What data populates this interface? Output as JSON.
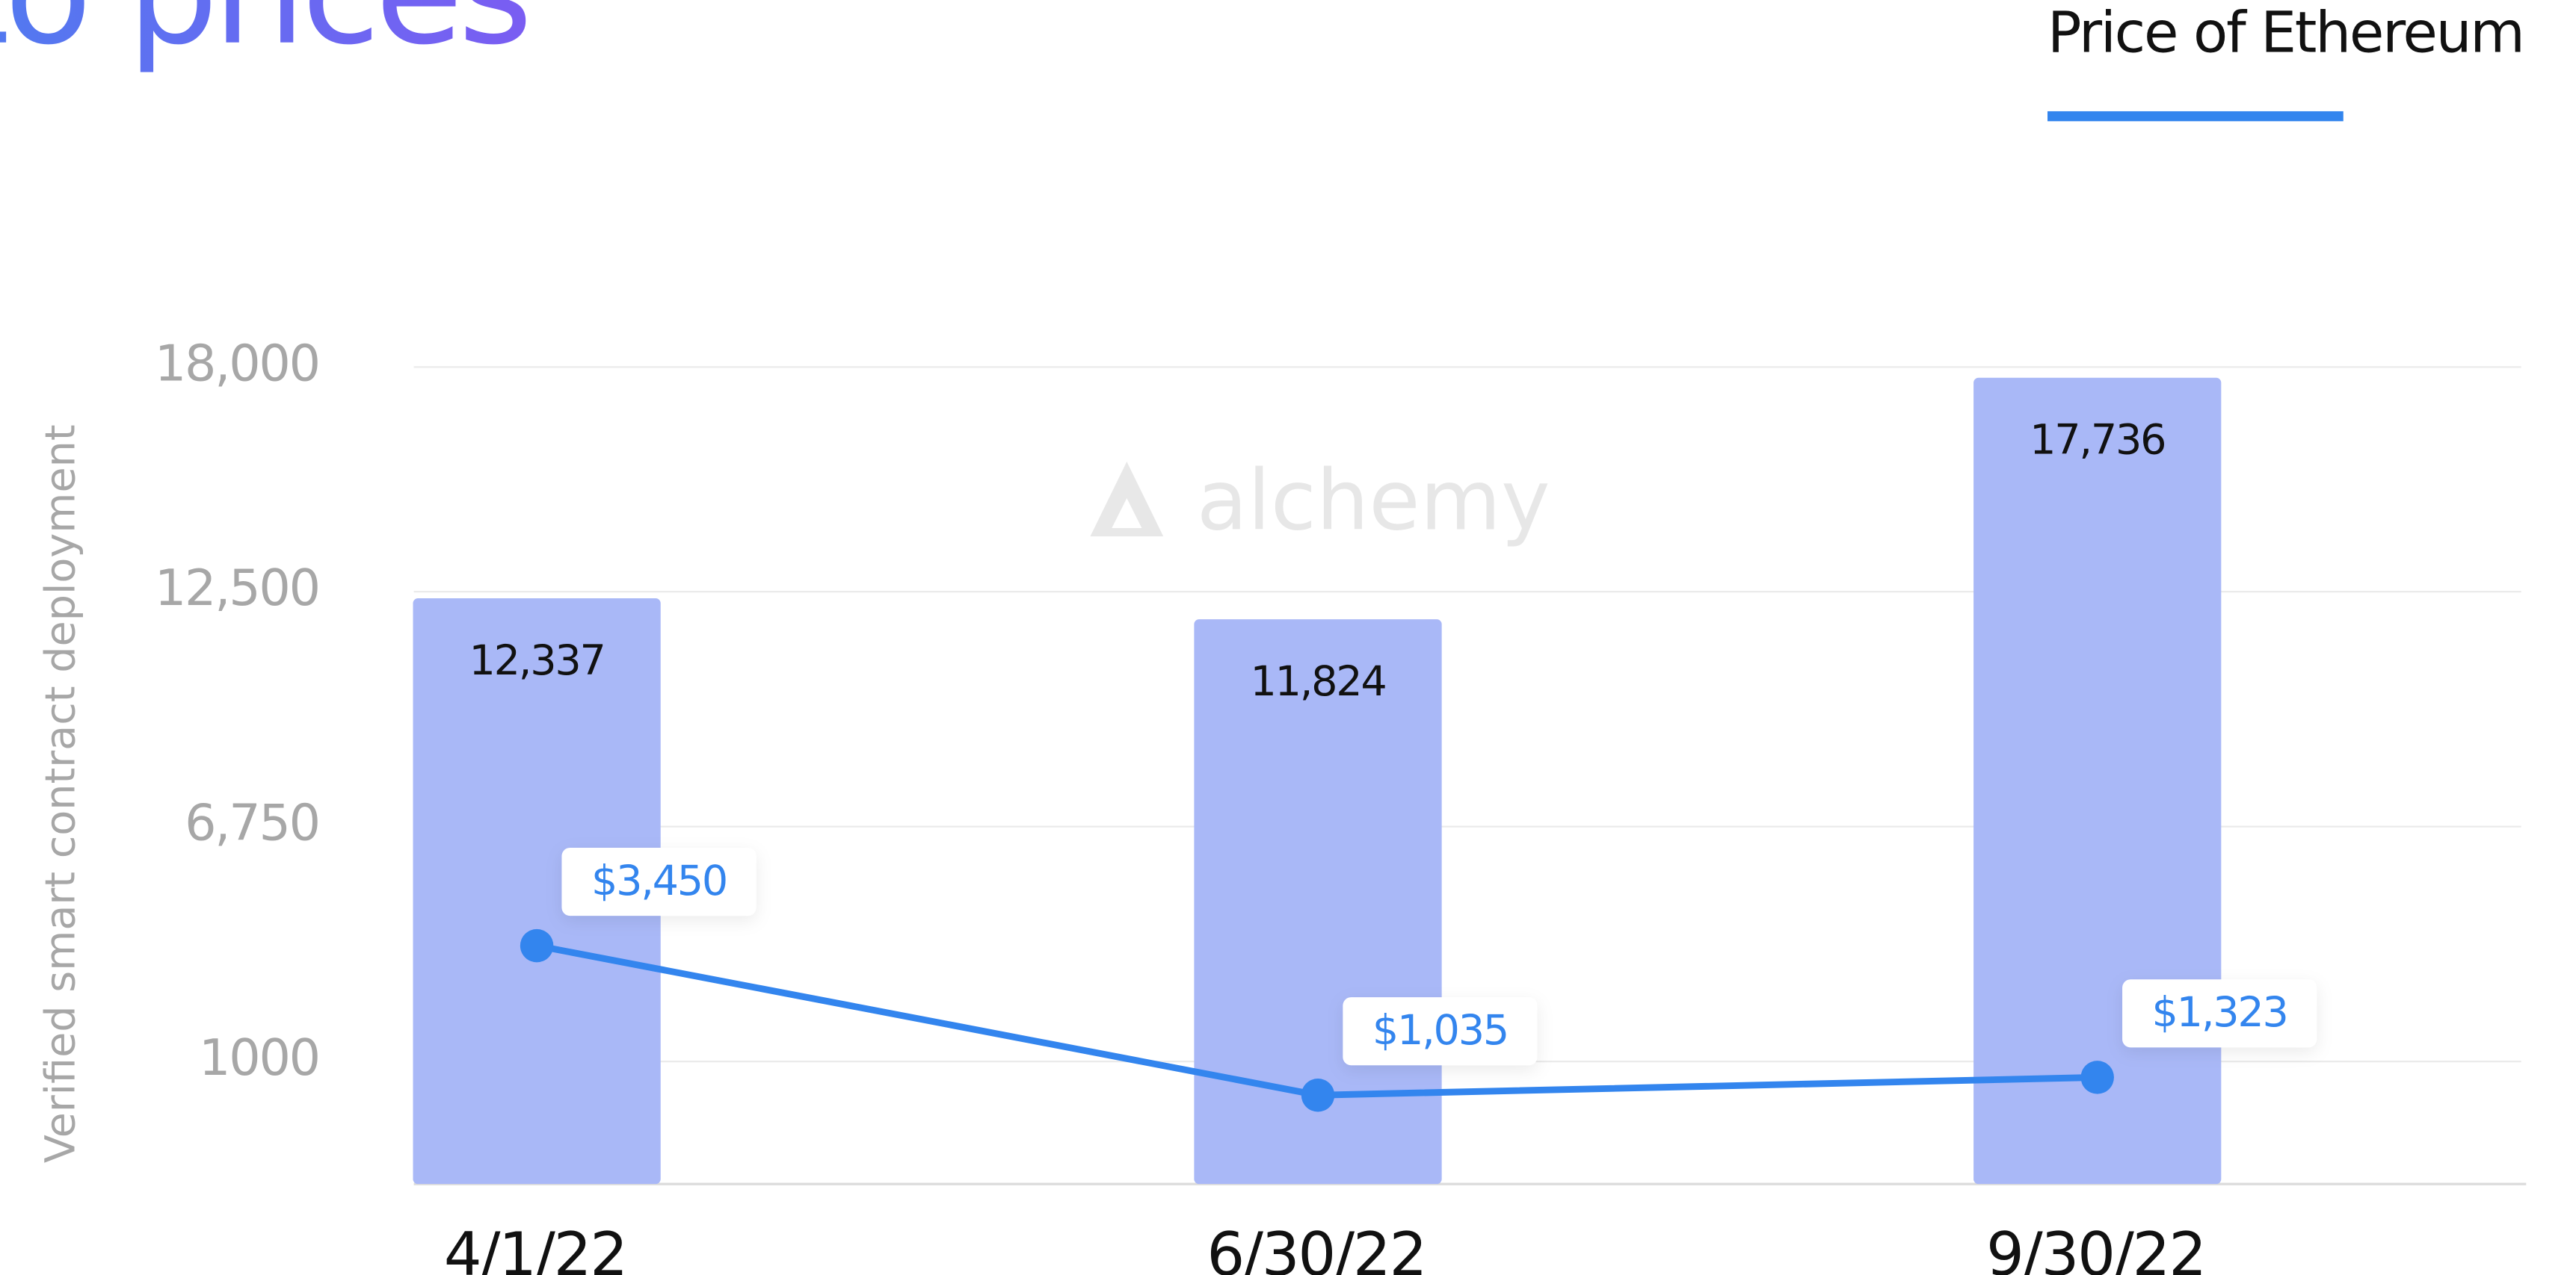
{
  "chart_data": {
    "type": "bar_line",
    "title": "to prices",
    "watermark": "alchemy",
    "y_label": "Verified smart contract deployment",
    "categories": [
      "4/1/22",
      "6/30/22",
      "9/30/22"
    ],
    "series": [
      {
        "name": "Verified smart contract deployment",
        "type": "bar",
        "color": "#a9b8f7",
        "values": [
          12337,
          11824,
          17736
        ],
        "value_labels": [
          "12,337",
          "11,824",
          "17,736"
        ]
      },
      {
        "name": "Price of Ethereum",
        "type": "line",
        "axis": "y2",
        "color": "#3385ee",
        "values": [
          3450,
          1035,
          1323
        ],
        "value_labels": [
          "$3,450",
          "$1,035",
          "$1,323"
        ]
      }
    ],
    "ylim": [
      -2000,
      18000
    ],
    "yticks": [
      {
        "value": 1000,
        "label": "1000"
      },
      {
        "value": 6750,
        "label": "6,750"
      },
      {
        "value": 12500,
        "label": "12,500"
      },
      {
        "value": 18000,
        "label": "18,000"
      }
    ],
    "y2lim": [
      -400,
      12800
    ],
    "grid": true,
    "legend": "top-right"
  }
}
